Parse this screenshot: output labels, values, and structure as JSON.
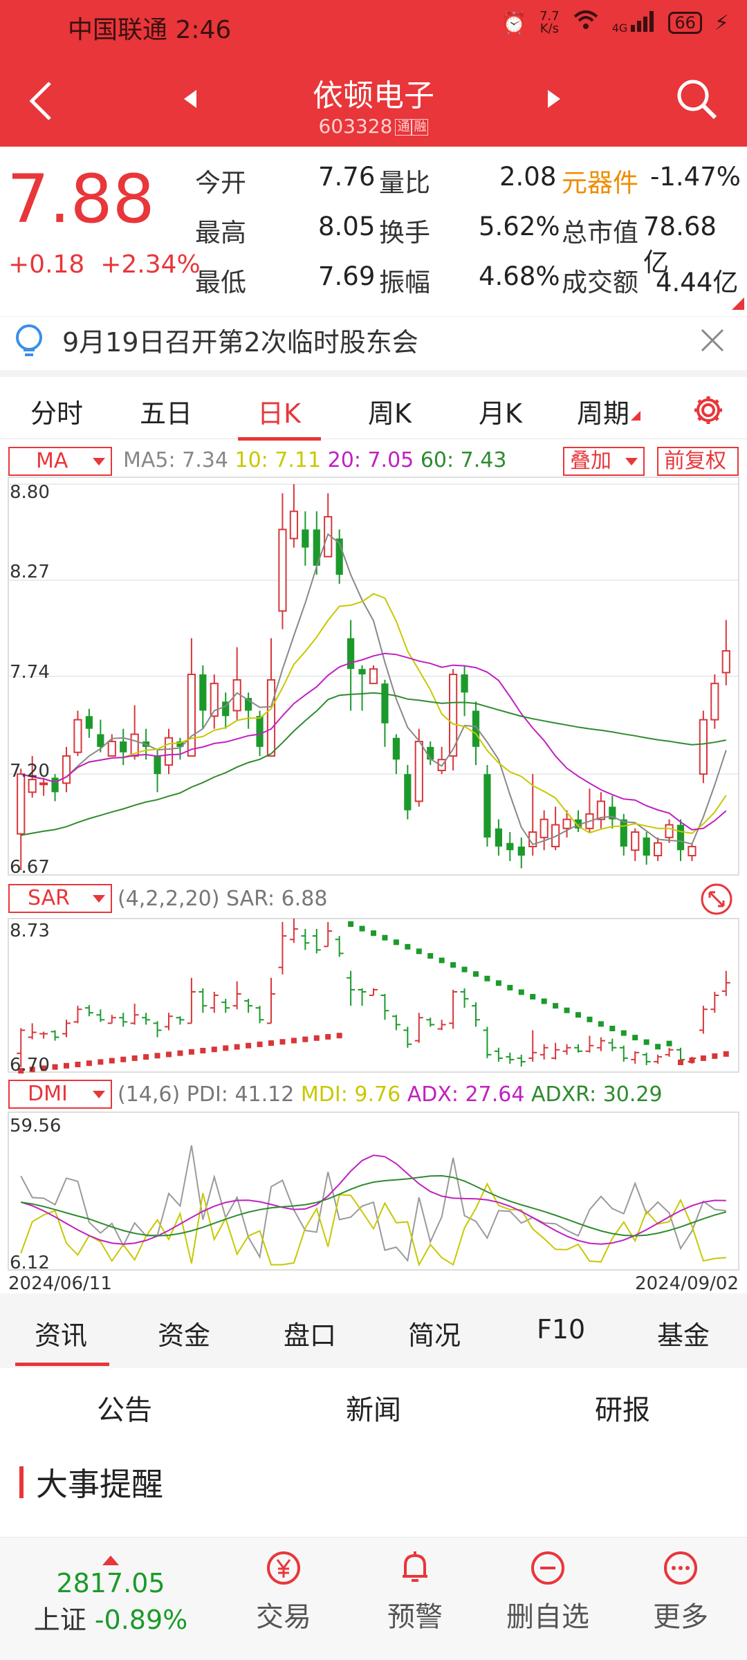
{
  "status_bar": {
    "carrier": "中国联通",
    "time": "2:46",
    "speed": "7.7\nK/s",
    "network": "4G",
    "battery": "66"
  },
  "nav": {
    "title": "依顿电子",
    "code": "603328",
    "tags": [
      "通",
      "融"
    ]
  },
  "quote": {
    "price": "7.88",
    "change": "+0.18",
    "change_pct": "+2.34%",
    "rows": [
      {
        "l1": "今开",
        "v1": "7.76",
        "l2": "量比",
        "v2": "2.08",
        "l3": "元器件",
        "v3": "-1.47%"
      },
      {
        "l1": "最高",
        "v1": "8.05",
        "l2": "换手",
        "v2": "5.62%",
        "l3": "总市值",
        "v3": "78.68亿"
      },
      {
        "l1": "最低",
        "v1": "7.69",
        "l2": "振幅",
        "v2": "4.68%",
        "l3": "成交额",
        "v3": "4.44亿"
      }
    ]
  },
  "notice": {
    "text": "9月19日召开第2次临时股东会"
  },
  "period_tabs": [
    "分时",
    "五日",
    "日K",
    "周K",
    "月K",
    "周期"
  ],
  "active_period": "日K",
  "ma_panel": {
    "selector": "MA",
    "ma5": "MA5: 7.34",
    "ma10": "10: 7.11",
    "ma20": "20: 7.05",
    "ma60": "60: 7.43",
    "overlay": "叠加",
    "adjust": "前复权",
    "ticks": [
      "8.80",
      "8.27",
      "7.74",
      "7.20",
      "6.67"
    ],
    "colors": {
      "ma5": "#888888",
      "ma10": "#c8c800",
      "ma20": "#c020c0",
      "ma60": "#2e8b2e",
      "up": "#d8363a",
      "down": "#1b9a2b"
    }
  },
  "sar_panel": {
    "selector": "SAR",
    "legend": "(4,2,2,20) SAR: 6.88",
    "ticks": [
      "8.73",
      "6.70"
    ]
  },
  "dmi_panel": {
    "selector": "DMI",
    "params": "(14,6)",
    "pdi": "PDI: 41.12",
    "mdi": "MDI: 9.76",
    "adx": "ADX: 27.64",
    "adxr": "ADXR: 30.29",
    "ticks": [
      "59.56",
      "6.12"
    ],
    "date_start": "2024/06/11",
    "date_end": "2024/09/02"
  },
  "chart_data": [
    {
      "type": "candlestick",
      "title": "",
      "ylim": [
        6.67,
        8.8
      ],
      "candles": [
        [
          6.87,
          7.2,
          6.67,
          7.23
        ],
        [
          7.1,
          7.17,
          7.07,
          7.3
        ],
        [
          7.15,
          7.15,
          7.08,
          7.18
        ],
        [
          7.18,
          7.1,
          7.05,
          7.2
        ],
        [
          7.15,
          7.3,
          7.1,
          7.35
        ],
        [
          7.32,
          7.5,
          7.3,
          7.55
        ],
        [
          7.52,
          7.45,
          7.4,
          7.56
        ],
        [
          7.42,
          7.35,
          7.32,
          7.5
        ],
        [
          7.3,
          7.38,
          7.3,
          7.42
        ],
        [
          7.38,
          7.32,
          7.25,
          7.45
        ],
        [
          7.3,
          7.42,
          7.28,
          7.58
        ],
        [
          7.38,
          7.35,
          7.28,
          7.45
        ],
        [
          7.3,
          7.2,
          7.1,
          7.33
        ],
        [
          7.25,
          7.4,
          7.2,
          7.45
        ],
        [
          7.38,
          7.35,
          7.28,
          7.4
        ],
        [
          7.3,
          7.75,
          7.3,
          7.95
        ],
        [
          7.75,
          7.55,
          7.45,
          7.8
        ],
        [
          7.52,
          7.7,
          7.45,
          7.75
        ],
        [
          7.6,
          7.52,
          7.45,
          7.65
        ],
        [
          7.55,
          7.72,
          7.5,
          7.9
        ],
        [
          7.62,
          7.55,
          7.45,
          7.65
        ],
        [
          7.52,
          7.35,
          7.3,
          7.55
        ],
        [
          7.3,
          7.72,
          7.3,
          7.95
        ],
        [
          8.1,
          8.55,
          8.0,
          8.75
        ],
        [
          8.5,
          8.65,
          8.45,
          8.8
        ],
        [
          8.55,
          8.45,
          8.35,
          8.65
        ],
        [
          8.55,
          8.35,
          8.3,
          8.65
        ],
        [
          8.4,
          8.62,
          8.4,
          8.75
        ],
        [
          8.5,
          8.3,
          8.25,
          8.55
        ],
        [
          7.95,
          7.78,
          7.55,
          8.05
        ],
        [
          7.78,
          7.75,
          7.55,
          7.8
        ],
        [
          7.7,
          7.78,
          7.7,
          7.8
        ],
        [
          7.7,
          7.48,
          7.35,
          7.72
        ],
        [
          7.4,
          7.28,
          7.2,
          7.42
        ],
        [
          7.2,
          7.0,
          6.95,
          7.25
        ],
        [
          7.05,
          7.38,
          7.02,
          7.45
        ],
        [
          7.35,
          7.28,
          7.25,
          7.38
        ],
        [
          7.22,
          7.28,
          7.2,
          7.35
        ],
        [
          7.3,
          7.75,
          7.22,
          7.78
        ],
        [
          7.75,
          7.65,
          7.52,
          7.8
        ],
        [
          7.55,
          7.35,
          7.25,
          7.6
        ],
        [
          7.2,
          6.85,
          6.8,
          7.25
        ],
        [
          6.9,
          6.8,
          6.75,
          6.95
        ],
        [
          6.82,
          6.78,
          6.72,
          6.88
        ],
        [
          6.8,
          6.75,
          6.68,
          6.85
        ],
        [
          6.8,
          6.88,
          6.75,
          7.2
        ],
        [
          6.85,
          6.95,
          6.78,
          7.0
        ],
        [
          6.8,
          6.92,
          6.78,
          7.02
        ],
        [
          6.9,
          6.95,
          6.85,
          7.0
        ],
        [
          6.95,
          6.9,
          6.88,
          7.0
        ],
        [
          6.9,
          6.98,
          6.88,
          7.12
        ],
        [
          6.95,
          7.05,
          6.9,
          7.1
        ],
        [
          7.02,
          6.95,
          6.9,
          7.08
        ],
        [
          6.95,
          6.8,
          6.75,
          6.98
        ],
        [
          6.78,
          6.88,
          6.72,
          6.9
        ],
        [
          6.85,
          6.75,
          6.7,
          6.88
        ],
        [
          6.75,
          6.82,
          6.72,
          6.85
        ],
        [
          6.85,
          6.92,
          6.82,
          6.95
        ],
        [
          6.92,
          6.78,
          6.72,
          6.95
        ],
        [
          6.75,
          6.8,
          6.72,
          6.82
        ],
        [
          7.2,
          7.5,
          7.15,
          7.55
        ],
        [
          7.5,
          7.7,
          7.45,
          7.75
        ],
        [
          7.76,
          7.88,
          7.69,
          8.05
        ]
      ]
    }
  ]
}
